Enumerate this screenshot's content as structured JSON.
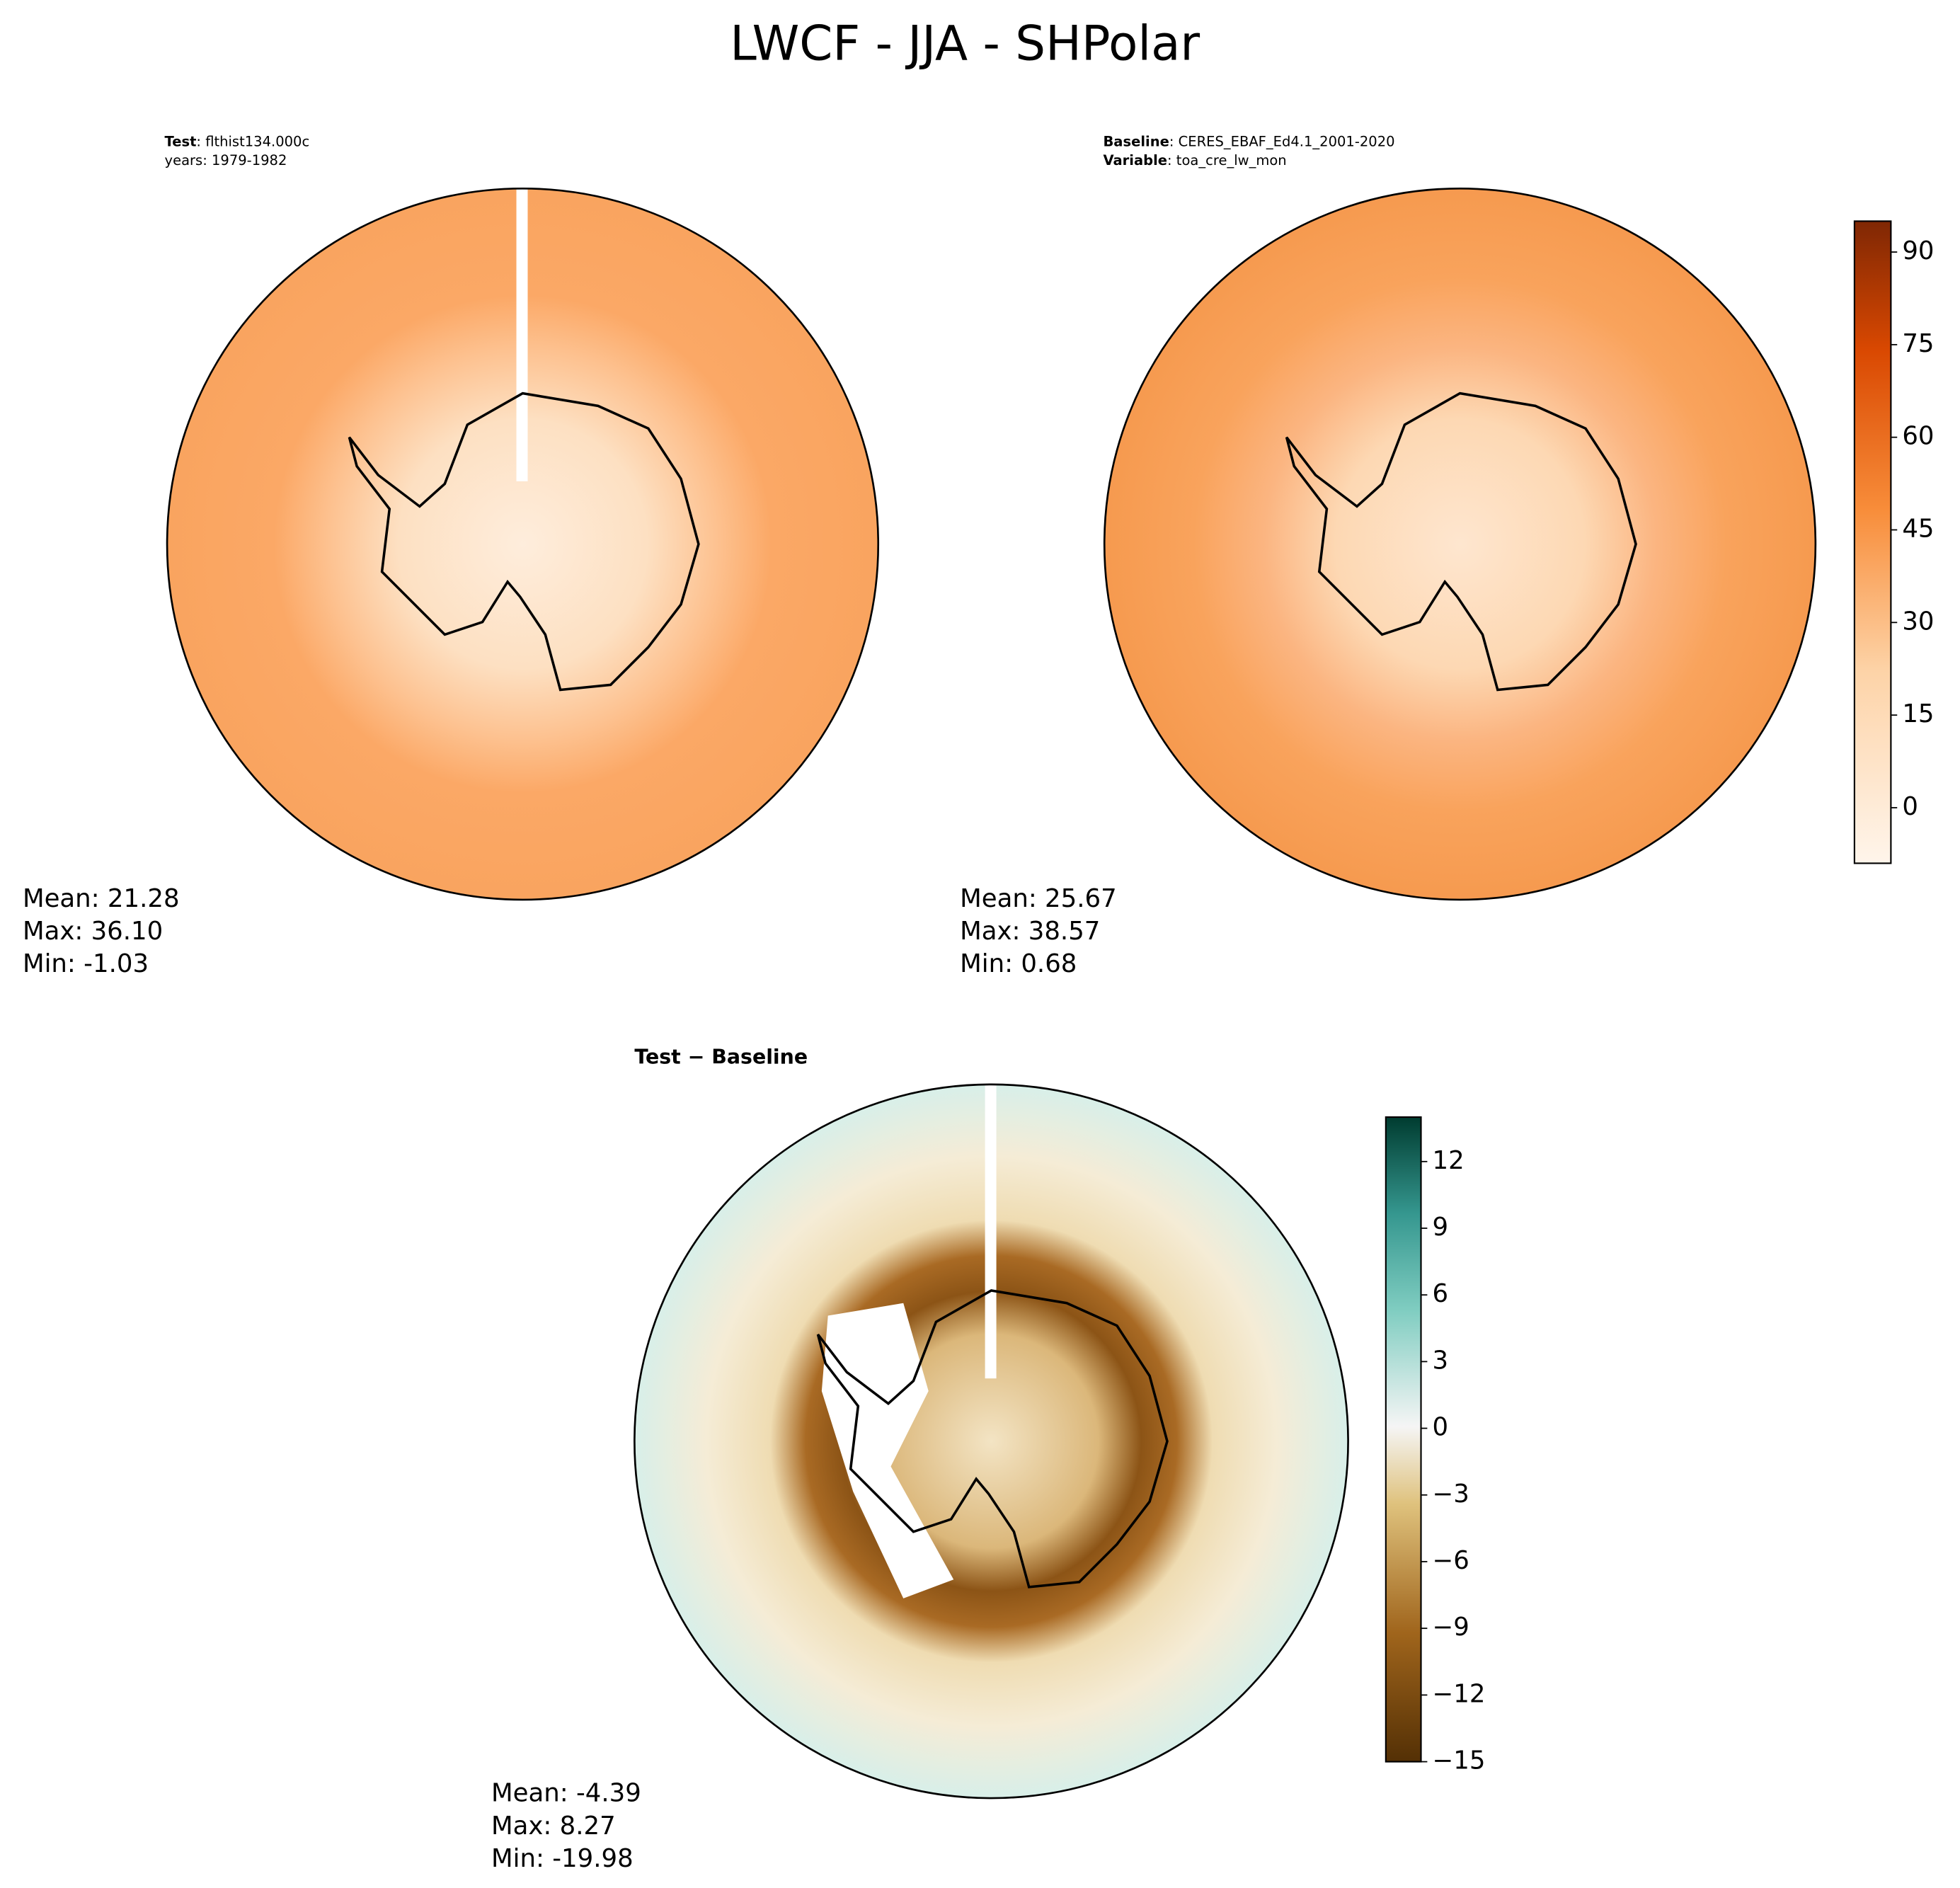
{
  "chart_data": [
    {
      "type": "contour-map",
      "suptitle": "LWCF - JJA - SHPolar",
      "header": [
        {
          "label": "Test",
          "text": ": flthist134.000c"
        },
        {
          "label": "",
          "text": "years: 1979-1982"
        }
      ],
      "stats": [
        "Mean: 21.28",
        "Max: 36.10",
        "Min: -1.03"
      ]
    },
    {
      "type": "contour-map",
      "header": [
        {
          "label": "Baseline",
          "text": ": CERES_EBAF_Ed4.1_2001-2020"
        },
        {
          "label": "Variable",
          "text": ": toa_cre_lw_mon"
        }
      ],
      "stats": [
        "Mean: 25.67",
        "Max: 38.57",
        "Min:  0.68"
      ],
      "clim": [
        -9,
        95
      ],
      "cticks": [
        0,
        15,
        30,
        45,
        60,
        75,
        90
      ]
    },
    {
      "type": "contour-map",
      "title": "Test − Baseline",
      "stats": [
        "Mean: -4.39",
        "Max:  8.27",
        "Min: -19.98"
      ],
      "clim": [
        -15,
        14
      ],
      "cticks": [
        {
          "value": -15,
          "label": "−15"
        },
        {
          "value": -12,
          "label": "−12"
        },
        {
          "value": -9,
          "label": "−9"
        },
        {
          "value": -6,
          "label": "−6"
        },
        {
          "value": -3,
          "label": "−3"
        },
        0,
        3,
        6,
        9,
        12
      ]
    }
  ]
}
